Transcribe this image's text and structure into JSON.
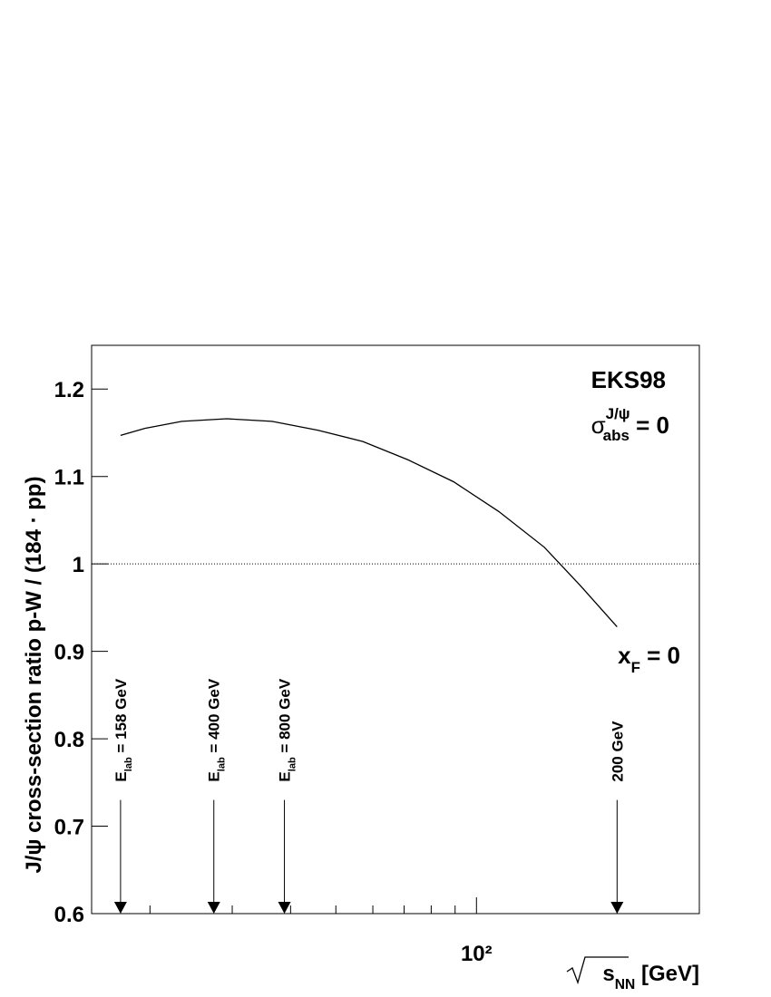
{
  "chart_data": {
    "type": "line",
    "x_label": {
      "root": "s",
      "sub": "NN",
      "rest": " [GeV]"
    },
    "y_label": "J/ψ cross-section ratio p-W / (184 · pp)",
    "log_x": true,
    "xlim": [
      15,
      300
    ],
    "xticks": [
      {
        "value": 100,
        "label": "10²"
      }
    ],
    "xminorticks": [
      20,
      30,
      40,
      50,
      60,
      70,
      80,
      90,
      200,
      300
    ],
    "ylim": [
      0.6,
      1.25
    ],
    "yticks": [
      0.6,
      0.7,
      0.8,
      0.9,
      1,
      1.1,
      1.2
    ],
    "reference_line": 1,
    "texts": {
      "model": "EKS98",
      "sigma": {
        "symbol": "σ",
        "sup": "J/ψ",
        "sub": "abs",
        "rest": " = 0"
      },
      "xf": {
        "symbol": "x",
        "sub": "F",
        "rest": " = 0"
      }
    },
    "x": [
      17.3,
      19.5,
      23.4,
      29.2,
      36.5,
      45.7,
      57.1,
      71.4,
      89.3,
      111.6,
      139.7,
      167,
      200
    ],
    "series": [
      {
        "name": "EKS98",
        "color": "#000000",
        "values": [
          1.147,
          1.155,
          1.163,
          1.166,
          1.163,
          1.153,
          1.14,
          1.119,
          1.094,
          1.06,
          1.019,
          0.975,
          0.928
        ]
      }
    ],
    "arrows": [
      {
        "x": 17.3,
        "y": 0.73,
        "text": "E",
        "sub": "lab",
        "rest": " = 158 GeV"
      },
      {
        "x": 27.4,
        "y": 0.73,
        "text": "E",
        "sub": "lab",
        "rest": " = 400 GeV"
      },
      {
        "x": 38.8,
        "y": 0.73,
        "text": "E",
        "sub": "lab",
        "rest": " = 800 GeV"
      },
      {
        "x": 200,
        "y": 0.73,
        "text": "200 GeV"
      }
    ]
  }
}
